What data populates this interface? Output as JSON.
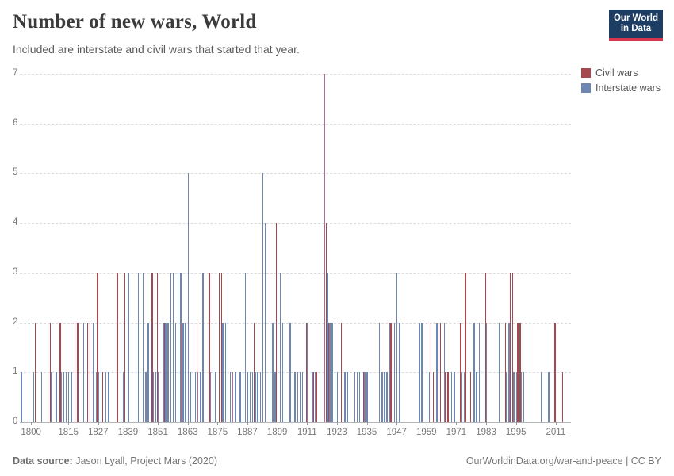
{
  "header": {
    "title": "Number of new wars, World",
    "subtitle": "Included are interstate and civil wars that started that year.",
    "logo_line1": "Our World",
    "logo_line2": "in Data"
  },
  "legend": {
    "civil_label": "Civil wars",
    "interstate_label": "Interstate wars"
  },
  "colors": {
    "civil": "#a5494f",
    "interstate": "#6e87b2"
  },
  "footer": {
    "source_label": "Data source:",
    "source_value": " Jason Lyall, Project Mars (2020)",
    "credit": "OurWorldinData.org/war-and-peace | CC BY"
  },
  "chart_data": {
    "type": "bar",
    "title": "Number of new wars, World",
    "xlabel": "",
    "ylabel": "",
    "ylim": [
      0,
      7
    ],
    "yticks": [
      0,
      1,
      2,
      3,
      4,
      5,
      6,
      7
    ],
    "xtick_labels": [
      1800,
      1815,
      1827,
      1839,
      1851,
      1863,
      1875,
      1887,
      1899,
      1911,
      1923,
      1935,
      1947,
      1959,
      1971,
      1983,
      1995,
      2011
    ],
    "year_range": [
      1796,
      2016
    ],
    "grid": "dashed-horizontal",
    "legend_position": "right-top",
    "series_names": [
      "Civil wars",
      "Interstate wars"
    ],
    "values_format": "[year, civil_wars, interstate_wars]",
    "values": [
      [
        1796,
        0,
        1
      ],
      [
        1799,
        0,
        2
      ],
      [
        1801,
        0,
        1
      ],
      [
        1802,
        2,
        0
      ],
      [
        1804,
        0,
        1
      ],
      [
        1808,
        2,
        1
      ],
      [
        1810,
        0,
        1
      ],
      [
        1812,
        2,
        1
      ],
      [
        1813,
        0,
        1
      ],
      [
        1814,
        0,
        1
      ],
      [
        1815,
        0,
        1
      ],
      [
        1816,
        0,
        1
      ],
      [
        1818,
        2,
        0
      ],
      [
        1819,
        2,
        1
      ],
      [
        1821,
        0,
        2
      ],
      [
        1822,
        0,
        2
      ],
      [
        1823,
        2,
        0
      ],
      [
        1824,
        2,
        0
      ],
      [
        1825,
        0,
        2
      ],
      [
        1826,
        0,
        1
      ],
      [
        1827,
        3,
        1
      ],
      [
        1828,
        0,
        2
      ],
      [
        1829,
        1,
        0
      ],
      [
        1830,
        0,
        1
      ],
      [
        1831,
        0,
        1
      ],
      [
        1835,
        3,
        0
      ],
      [
        1836,
        0,
        2
      ],
      [
        1837,
        0,
        1
      ],
      [
        1838,
        3,
        0
      ],
      [
        1839,
        0,
        3
      ],
      [
        1842,
        0,
        2
      ],
      [
        1843,
        0,
        3
      ],
      [
        1845,
        0,
        3
      ],
      [
        1846,
        0,
        1
      ],
      [
        1847,
        0,
        2
      ],
      [
        1848,
        0,
        2
      ],
      [
        1849,
        3,
        1
      ],
      [
        1850,
        0,
        1
      ],
      [
        1851,
        3,
        1
      ],
      [
        1853,
        0,
        2
      ],
      [
        1854,
        2,
        2
      ],
      [
        1855,
        0,
        2
      ],
      [
        1856,
        0,
        3
      ],
      [
        1857,
        0,
        3
      ],
      [
        1858,
        0,
        2
      ],
      [
        1859,
        0,
        3
      ],
      [
        1860,
        0,
        3
      ],
      [
        1861,
        2,
        2
      ],
      [
        1862,
        0,
        2
      ],
      [
        1863,
        0,
        5
      ],
      [
        1864,
        0,
        1
      ],
      [
        1865,
        0,
        1
      ],
      [
        1866,
        0,
        1
      ],
      [
        1867,
        2,
        1
      ],
      [
        1868,
        0,
        1
      ],
      [
        1869,
        0,
        3
      ],
      [
        1872,
        3,
        1
      ],
      [
        1873,
        0,
        2
      ],
      [
        1874,
        0,
        1
      ],
      [
        1876,
        3,
        0
      ],
      [
        1877,
        3,
        2
      ],
      [
        1878,
        0,
        2
      ],
      [
        1879,
        0,
        3
      ],
      [
        1880,
        0,
        1
      ],
      [
        1881,
        1,
        1
      ],
      [
        1882,
        0,
        1
      ],
      [
        1884,
        0,
        1
      ],
      [
        1885,
        0,
        1
      ],
      [
        1886,
        0,
        3
      ],
      [
        1887,
        0,
        1
      ],
      [
        1888,
        0,
        1
      ],
      [
        1889,
        0,
        1
      ],
      [
        1890,
        2,
        1
      ],
      [
        1891,
        0,
        1
      ],
      [
        1892,
        0,
        1
      ],
      [
        1893,
        0,
        5
      ],
      [
        1894,
        0,
        4
      ],
      [
        1896,
        0,
        2
      ],
      [
        1897,
        0,
        2
      ],
      [
        1898,
        0,
        1
      ],
      [
        1899,
        4,
        0
      ],
      [
        1900,
        0,
        3
      ],
      [
        1901,
        0,
        2
      ],
      [
        1902,
        0,
        2
      ],
      [
        1904,
        0,
        2
      ],
      [
        1906,
        0,
        1
      ],
      [
        1907,
        0,
        1
      ],
      [
        1908,
        0,
        1
      ],
      [
        1909,
        0,
        1
      ],
      [
        1911,
        2,
        2
      ],
      [
        1913,
        0,
        1
      ],
      [
        1914,
        1,
        1
      ],
      [
        1915,
        1,
        0
      ],
      [
        1918,
        7,
        7
      ],
      [
        1919,
        4,
        3
      ],
      [
        1920,
        2,
        2
      ],
      [
        1921,
        0,
        2
      ],
      [
        1922,
        0,
        1
      ],
      [
        1923,
        0,
        1
      ],
      [
        1925,
        2,
        0
      ],
      [
        1926,
        0,
        1
      ],
      [
        1927,
        0,
        1
      ],
      [
        1930,
        0,
        1
      ],
      [
        1931,
        0,
        1
      ],
      [
        1932,
        0,
        1
      ],
      [
        1933,
        0,
        1
      ],
      [
        1934,
        1,
        1
      ],
      [
        1935,
        0,
        1
      ],
      [
        1936,
        0,
        1
      ],
      [
        1940,
        0,
        2
      ],
      [
        1941,
        0,
        1
      ],
      [
        1942,
        0,
        1
      ],
      [
        1943,
        0,
        1
      ],
      [
        1944,
        0,
        2
      ],
      [
        1945,
        2,
        0
      ],
      [
        1946,
        0,
        2
      ],
      [
        1947,
        0,
        3
      ],
      [
        1948,
        0,
        2
      ],
      [
        1956,
        0,
        2
      ],
      [
        1957,
        0,
        2
      ],
      [
        1959,
        0,
        1
      ],
      [
        1960,
        0,
        1
      ],
      [
        1961,
        2,
        0
      ],
      [
        1962,
        1,
        0
      ],
      [
        1963,
        0,
        2
      ],
      [
        1965,
        2,
        0
      ],
      [
        1966,
        0,
        2
      ],
      [
        1967,
        1,
        0
      ],
      [
        1968,
        1,
        0
      ],
      [
        1969,
        0,
        1
      ],
      [
        1970,
        0,
        1
      ],
      [
        1973,
        2,
        1
      ],
      [
        1974,
        0,
        1
      ],
      [
        1975,
        3,
        0
      ],
      [
        1977,
        1,
        0
      ],
      [
        1978,
        0,
        2
      ],
      [
        1979,
        0,
        1
      ],
      [
        1980,
        0,
        2
      ],
      [
        1983,
        3,
        2
      ],
      [
        1988,
        0,
        2
      ],
      [
        1991,
        2,
        1
      ],
      [
        1992,
        0,
        2
      ],
      [
        1993,
        3,
        0
      ],
      [
        1994,
        3,
        1
      ],
      [
        1995,
        0,
        1
      ],
      [
        1996,
        2,
        0
      ],
      [
        1997,
        2,
        1
      ],
      [
        1998,
        0,
        1
      ],
      [
        2005,
        0,
        1
      ],
      [
        2008,
        0,
        1
      ],
      [
        2011,
        2,
        0
      ],
      [
        2014,
        1,
        0
      ]
    ]
  }
}
